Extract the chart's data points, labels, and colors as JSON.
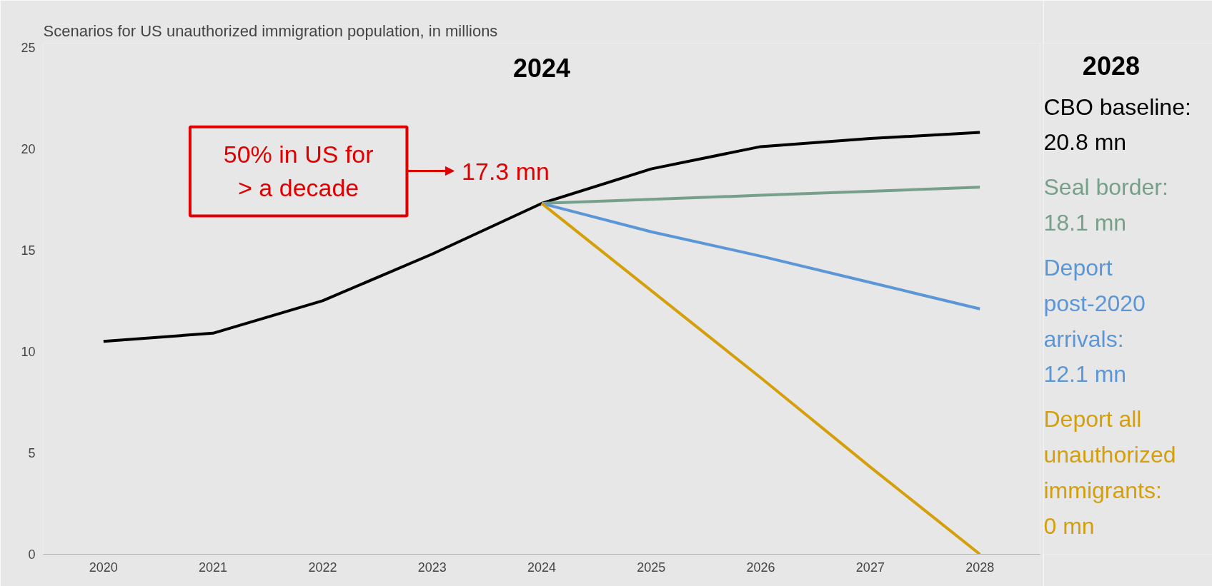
{
  "chart_data": {
    "type": "line",
    "title": "Scenarios for US unauthorized immigration population, in millions",
    "x": [
      2020,
      2021,
      2022,
      2023,
      2024,
      2025,
      2026,
      2027,
      2028
    ],
    "xlim": [
      2019.45,
      2028.55
    ],
    "xticks": [
      2020,
      2021,
      2022,
      2023,
      2024,
      2025,
      2026,
      2027,
      2028
    ],
    "ylim": [
      0,
      25.2
    ],
    "yticks": [
      0,
      5,
      10,
      15,
      20,
      25
    ],
    "grid": false,
    "marker": "none",
    "line_style": "solid",
    "series": [
      {
        "name": "CBO baseline:",
        "color": "#000000",
        "values": [
          10.5,
          10.9,
          12.5,
          14.8,
          17.3,
          19.0,
          20.1,
          20.5,
          20.8
        ]
      },
      {
        "name": "Seal border:",
        "color": "#76a08a",
        "values": [
          null,
          null,
          null,
          null,
          17.3,
          17.5,
          17.7,
          17.9,
          18.1
        ]
      },
      {
        "name": "Deport post-2020 arrivals:",
        "color": "#5b96d6",
        "values": [
          null,
          null,
          null,
          null,
          17.3,
          15.9,
          14.7,
          13.4,
          12.1
        ]
      },
      {
        "name": "Deport all unauthorized immigrants:",
        "color": "#d49f0a",
        "values": [
          null,
          null,
          null,
          null,
          17.3,
          13.0,
          8.7,
          4.3,
          0
        ]
      }
    ],
    "annotations": [
      {
        "text": "17.3 mn",
        "x": 2024,
        "y": 17.3
      },
      "50% in US for\n> a decade",
      "2024",
      "2028",
      "20.8 mn",
      "18.1 mn",
      "12.1 mn",
      "0 mn"
    ]
  }
}
